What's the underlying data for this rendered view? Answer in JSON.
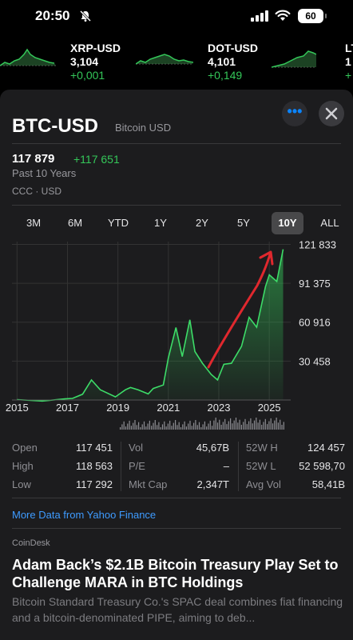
{
  "status_bar": {
    "time": "20:50",
    "battery": "60"
  },
  "ticker": [
    {
      "symbol": "XRP-USD",
      "price": "3,104",
      "change": "+0,001"
    },
    {
      "symbol": "DOT-USD",
      "price": "4,101",
      "change": "+0,149"
    },
    {
      "symbol": "LT",
      "price": "1",
      "change": "+"
    }
  ],
  "quote": {
    "symbol": "BTC-USD",
    "name": "Bitcoin USD",
    "price": "117 879",
    "change": "+117 651",
    "period_label": "Past 10 Years",
    "exchange": "CCC · USD",
    "more_icon": "ellipsis-icon",
    "close_icon": "close-icon"
  },
  "ranges": [
    "3M",
    "6M",
    "YTD",
    "1Y",
    "2Y",
    "5Y",
    "10Y",
    "ALL"
  ],
  "selected_range": "10Y",
  "colors": {
    "accent_green": "#34c759",
    "link_blue": "#3e9bff",
    "annotation_red": "#e0282e"
  },
  "chart_data": {
    "type": "area",
    "x": [
      2015.0,
      2016.0,
      2016.9,
      2017.2,
      2017.6,
      2017.95,
      2018.3,
      2018.9,
      2019.3,
      2019.5,
      2019.8,
      2020.2,
      2020.4,
      2020.8,
      2021.0,
      2021.3,
      2021.55,
      2021.85,
      2022.05,
      2022.35,
      2022.7,
      2022.95,
      2023.2,
      2023.5,
      2023.9,
      2024.2,
      2024.5,
      2024.85,
      2025.0,
      2025.3,
      2025.55
    ],
    "y": [
      300,
      430,
      900,
      2500,
      4500,
      17000,
      8000,
      3700,
      8000,
      11000,
      8000,
      6000,
      9000,
      13000,
      33000,
      58000,
      34000,
      64000,
      38000,
      30000,
      20000,
      17000,
      28000,
      30000,
      42000,
      66000,
      57000,
      90000,
      98000,
      94000,
      118000
    ],
    "x_ticks": [
      "2015",
      "2017",
      "2019",
      "2021",
      "2023",
      "2025"
    ],
    "y_ticks": [
      "30 458",
      "60 916",
      "91 375",
      "121 833"
    ],
    "xlim": [
      2014.8,
      2025.85
    ],
    "ylim": [
      0,
      124000
    ],
    "grid": true,
    "annotation": "red hand-drawn arrow pointing up-right from 2022 low toward 2025 high"
  },
  "stats": {
    "col1": [
      {
        "label": "Open",
        "value": "117 451"
      },
      {
        "label": "High",
        "value": "118 563"
      },
      {
        "label": "Low",
        "value": "117 292"
      }
    ],
    "col2": [
      {
        "label": "Vol",
        "value": "45,67B"
      },
      {
        "label": "P/E",
        "value": "–"
      },
      {
        "label": "Mkt Cap",
        "value": "2,347T"
      }
    ],
    "col3": [
      {
        "label": "52W H",
        "value": "124 457"
      },
      {
        "label": "52W L",
        "value": "52 598,70"
      },
      {
        "label": "Avg Vol",
        "value": "58,41B"
      }
    ]
  },
  "more_data_link": "More Data from Yahoo Finance",
  "news": {
    "source": "CoinDesk",
    "headline": "Adam Back’s $2.1B Bitcoin Treasury Play Set to Challenge MARA in BTC Holdings",
    "summary": "Bitcoin Standard Treasury Co.'s SPAC deal combines fiat financing and a bitcoin-denominated PIPE, aiming to deb..."
  }
}
